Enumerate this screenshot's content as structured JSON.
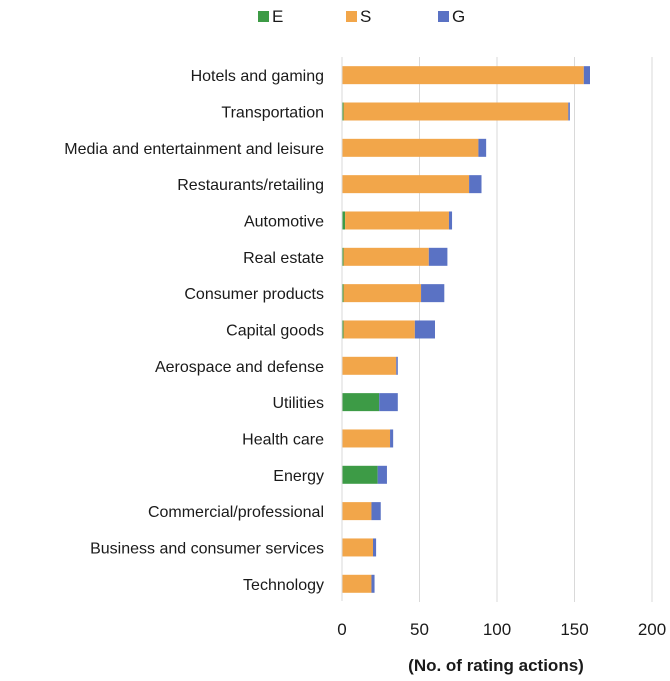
{
  "chart_data": {
    "type": "bar",
    "orientation": "horizontal",
    "stacked": true,
    "categories": [
      "Hotels and gaming",
      "Transportation",
      "Media and entertainment and leisure",
      "Restaurants/retailing",
      "Automotive",
      "Real estate",
      "Consumer products",
      "Capital goods",
      "Aerospace and defense",
      "Utilities",
      "Health care",
      "Energy",
      "Commercial/professional",
      "Business and consumer services",
      "Technology"
    ],
    "series": [
      {
        "name": "E",
        "color": "#3d9b46",
        "values": [
          0,
          1,
          0,
          0,
          2,
          1,
          1,
          1,
          0,
          24,
          0,
          23,
          0,
          0,
          0
        ]
      },
      {
        "name": "S",
        "color": "#f2a64a",
        "values": [
          156,
          145,
          88,
          82,
          67,
          55,
          50,
          46,
          35,
          0,
          31,
          0,
          19,
          20,
          19
        ]
      },
      {
        "name": "G",
        "color": "#5a72c4",
        "values": [
          4,
          1,
          5,
          8,
          2,
          12,
          15,
          13,
          1,
          12,
          2,
          6,
          6,
          2,
          2
        ]
      }
    ],
    "xlabel": "(No. of rating actions)",
    "ylabel": "",
    "xlim": [
      0,
      200
    ],
    "xticks": [
      0,
      50,
      100,
      150,
      200
    ],
    "grid": true,
    "legend_position": "top"
  }
}
